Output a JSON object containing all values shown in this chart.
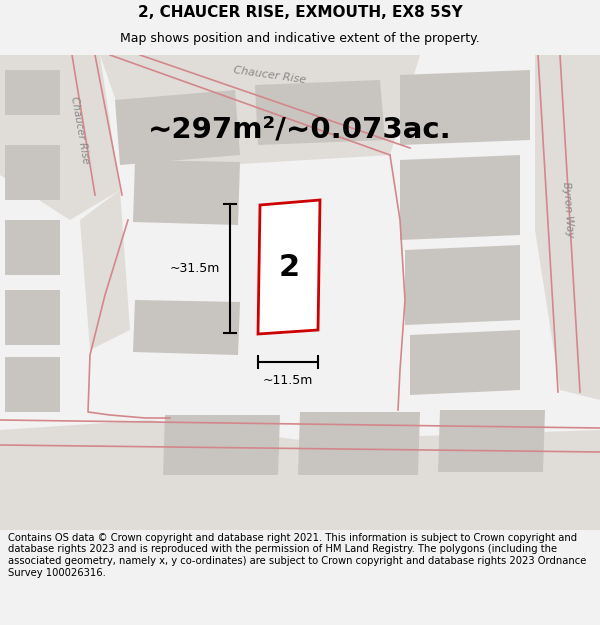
{
  "title": "2, CHAUCER RISE, EXMOUTH, EX8 5SY",
  "subtitle": "Map shows position and indicative extent of the property.",
  "area_text": "~297m²/~0.073ac.",
  "width_label": "~11.5m",
  "height_label": "~31.5m",
  "plot_number": "2",
  "bg_color": "#f2f2f2",
  "map_bg": "#e8e6e3",
  "block_color": "#d4d0cc",
  "building_color": "#c8c4c0",
  "road_area_color": "#e0ddd9",
  "property_fill": "#ffffff",
  "property_edge": "#cc0000",
  "road_line_color": "#d4878a",
  "footer_text": "Contains OS data © Crown copyright and database right 2021. This information is subject to Crown copyright and database rights 2023 and is reproduced with the permission of HM Land Registry. The polygons (including the associated geometry, namely x, y co-ordinates) are subject to Crown copyright and database rights 2023 Ordnance Survey 100026316.",
  "title_fontsize": 11,
  "subtitle_fontsize": 9,
  "area_fontsize": 21,
  "footer_fontsize": 7.2,
  "label_fontsize": 9
}
